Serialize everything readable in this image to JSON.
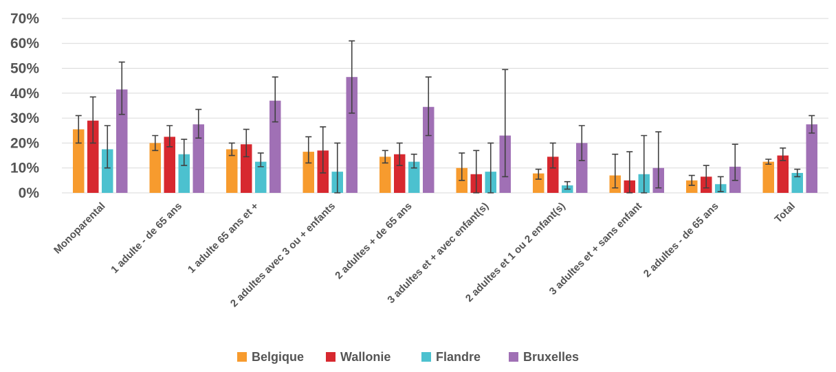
{
  "chart_data": {
    "type": "bar",
    "title": "",
    "xlabel": "",
    "ylabel": "",
    "ylim": [
      0,
      70
    ],
    "yticks": [
      "0%",
      "10%",
      "20%",
      "30%",
      "40%",
      "50%",
      "60%",
      "70%"
    ],
    "grid": true,
    "legend_position": "bottom",
    "categories": [
      "Monoparental",
      "1 adulte - de 65 ans",
      "1 adulte 65 ans et +",
      "2 adultes avec 3 ou + enfants",
      "2 adultes + de 65 ans",
      "3 adultes et + avec enfant(s)",
      "2 adultes et 1 ou 2 enfant(s)",
      "3 adultes et + sans enfant",
      "2 adultes - de 65 ans",
      "Total"
    ],
    "series": [
      {
        "name": "Belgique",
        "color": "#f79b2e",
        "values": [
          25.5,
          20,
          17.5,
          16.5,
          14.5,
          10,
          7.8,
          7,
          5,
          12.5
        ],
        "err_low": [
          20,
          17,
          15,
          12,
          12,
          5,
          5.5,
          2,
          3,
          11.5
        ],
        "err_high": [
          31,
          23,
          20,
          22.5,
          17,
          16,
          9.5,
          15.5,
          7,
          13.5
        ]
      },
      {
        "name": "Wallonie",
        "color": "#d7282f",
        "values": [
          29,
          22.5,
          19.5,
          17,
          15.5,
          7.5,
          14.5,
          5,
          6.5,
          15
        ],
        "err_low": [
          20,
          18.5,
          14.5,
          8,
          11,
          0,
          10,
          0,
          2,
          13
        ],
        "err_high": [
          38.5,
          27,
          25.5,
          26.5,
          20,
          17,
          20,
          16.5,
          11,
          18
        ]
      },
      {
        "name": "Flandre",
        "color": "#4cc1cf",
        "values": [
          17.5,
          15.5,
          12.5,
          8.5,
          12.5,
          8.5,
          3,
          7.5,
          3.5,
          8
        ],
        "err_low": [
          10,
          11,
          10.5,
          0,
          10,
          0,
          1.5,
          0,
          0.5,
          6.5
        ],
        "err_high": [
          27,
          21.5,
          16,
          20,
          15.5,
          20,
          4.5,
          23,
          6.5,
          9.5
        ]
      },
      {
        "name": "Bruxelles",
        "color": "#a070b5",
        "values": [
          41.5,
          27.5,
          37,
          46.5,
          34.5,
          23,
          20,
          10,
          10.5,
          27.5
        ],
        "err_low": [
          31.5,
          22,
          28.5,
          32,
          23,
          6.5,
          13,
          2,
          5,
          24
        ],
        "err_high": [
          52.5,
          33.5,
          46.5,
          61,
          46.5,
          49.5,
          27,
          24.5,
          19.5,
          31
        ]
      }
    ]
  }
}
